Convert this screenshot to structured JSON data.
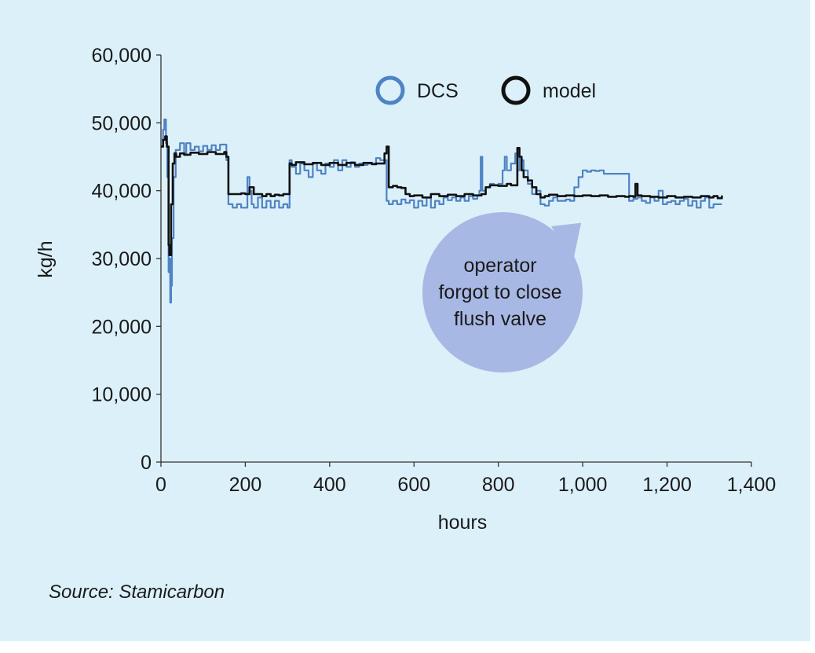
{
  "chart_data": {
    "type": "line",
    "title": "",
    "xlabel": "hours",
    "ylabel": "kg/h",
    "xlim": [
      0,
      1400
    ],
    "ylim": [
      0,
      60000
    ],
    "x_ticks": [
      0,
      200,
      400,
      600,
      800,
      1000,
      1200,
      1400
    ],
    "x_tick_labels": [
      "0",
      "200",
      "400",
      "600",
      "800",
      "1,000",
      "1,200",
      "1,400"
    ],
    "y_ticks": [
      0,
      10000,
      20000,
      30000,
      40000,
      50000,
      60000
    ],
    "y_tick_labels": [
      "0",
      "10,000",
      "20,000",
      "30,000",
      "40,000",
      "50,000",
      "60,000"
    ],
    "grid": false,
    "legend_position": "top-right",
    "series": [
      {
        "name": "DCS",
        "color": "#4f83c3",
        "x": [
          0,
          5,
          8,
          12,
          15,
          18,
          20,
          22,
          24,
          26,
          30,
          35,
          45,
          55,
          60,
          70,
          80,
          90,
          100,
          110,
          120,
          130,
          140,
          150,
          155,
          160,
          170,
          180,
          190,
          200,
          205,
          210,
          215,
          220,
          230,
          240,
          250,
          260,
          270,
          280,
          290,
          300,
          305,
          310,
          320,
          330,
          340,
          350,
          360,
          370,
          380,
          390,
          400,
          410,
          420,
          430,
          440,
          450,
          460,
          470,
          480,
          490,
          500,
          510,
          520,
          530,
          535,
          540,
          550,
          560,
          570,
          580,
          590,
          600,
          610,
          620,
          630,
          640,
          650,
          660,
          670,
          680,
          690,
          700,
          710,
          720,
          730,
          740,
          750,
          755,
          758,
          762,
          770,
          780,
          790,
          800,
          810,
          815,
          820,
          830,
          840,
          845,
          850,
          855,
          860,
          870,
          880,
          890,
          900,
          910,
          920,
          930,
          940,
          950,
          960,
          970,
          980,
          990,
          1000,
          1010,
          1020,
          1030,
          1040,
          1050,
          1060,
          1070,
          1080,
          1090,
          1100,
          1110,
          1120,
          1130,
          1140,
          1150,
          1160,
          1170,
          1180,
          1190,
          1200,
          1210,
          1220,
          1230,
          1240,
          1250,
          1260,
          1270,
          1280,
          1290,
          1300,
          1310,
          1320,
          1330
        ],
        "values": [
          47500,
          49000,
          50500,
          47000,
          42000,
          28000,
          30000,
          23500,
          26000,
          33000,
          42000,
          46000,
          47000,
          45500,
          47000,
          46000,
          46500,
          45800,
          46600,
          46000,
          46700,
          46000,
          46800,
          46800,
          44500,
          38000,
          37500,
          38000,
          37500,
          37500,
          42000,
          40000,
          38000,
          37500,
          39000,
          37500,
          38500,
          37500,
          38500,
          37500,
          38000,
          37500,
          44500,
          43500,
          42500,
          44000,
          43000,
          42000,
          44000,
          43000,
          42500,
          44000,
          43500,
          44500,
          43000,
          44500,
          43500,
          44200,
          43500,
          44000,
          43800,
          44000,
          44000,
          44800,
          44500,
          44500,
          38500,
          38000,
          38500,
          38000,
          38700,
          38200,
          38600,
          37500,
          38500,
          37800,
          39000,
          37500,
          38500,
          38000,
          39000,
          38600,
          39000,
          38500,
          39000,
          38500,
          39200,
          38800,
          39300,
          40000,
          45000,
          40000,
          40500,
          41000,
          40800,
          41000,
          43000,
          45000,
          43000,
          44000,
          45500,
          43000,
          45000,
          44500,
          43000,
          41000,
          39500,
          40000,
          38000,
          37800,
          38500,
          39000,
          38500,
          38500,
          38700,
          38500,
          40500,
          42000,
          43000,
          42800,
          43000,
          42900,
          43000,
          42500,
          42500,
          42500,
          42500,
          42500,
          42500,
          38500,
          38800,
          39000,
          38500,
          38200,
          39000,
          38500,
          40000,
          38000,
          38300,
          38500,
          38000,
          38500,
          38800,
          37800,
          38500,
          37500,
          38500,
          39000,
          37500,
          38000,
          38000,
          38000
        ]
      },
      {
        "name": "model",
        "color": "#111111",
        "x": [
          0,
          5,
          10,
          14,
          18,
          20,
          24,
          28,
          32,
          36,
          45,
          55,
          70,
          90,
          110,
          130,
          150,
          155,
          160,
          170,
          180,
          190,
          200,
          210,
          220,
          230,
          240,
          250,
          260,
          270,
          280,
          290,
          300,
          305,
          310,
          320,
          340,
          360,
          380,
          400,
          420,
          440,
          460,
          480,
          500,
          510,
          520,
          530,
          535,
          540,
          550,
          560,
          570,
          580,
          590,
          600,
          620,
          640,
          660,
          680,
          700,
          720,
          740,
          760,
          770,
          780,
          800,
          820,
          830,
          840,
          845,
          850,
          855,
          860,
          870,
          880,
          890,
          900,
          910,
          920,
          940,
          960,
          980,
          1000,
          1020,
          1040,
          1060,
          1080,
          1100,
          1110,
          1120,
          1125,
          1130,
          1140,
          1160,
          1180,
          1200,
          1220,
          1240,
          1260,
          1280,
          1300,
          1310,
          1320,
          1330
        ],
        "values": [
          46500,
          47500,
          48000,
          46500,
          32000,
          30500,
          38000,
          44000,
          45500,
          45000,
          45500,
          45300,
          45600,
          45400,
          45700,
          45400,
          45700,
          45000,
          39500,
          39500,
          39500,
          39600,
          39500,
          40500,
          39500,
          39500,
          39200,
          39500,
          39200,
          39400,
          39300,
          39500,
          39500,
          44000,
          43800,
          44200,
          43900,
          44100,
          43800,
          44100,
          43800,
          44100,
          43800,
          44100,
          43900,
          44000,
          44000,
          45500,
          46500,
          40500,
          40700,
          40500,
          40400,
          39500,
          39200,
          39300,
          39000,
          39500,
          39200,
          39400,
          39200,
          39500,
          39300,
          39500,
          40500,
          40800,
          40700,
          41000,
          40800,
          40800,
          46300,
          45000,
          43000,
          42000,
          41500,
          40500,
          39500,
          39000,
          39200,
          39400,
          39200,
          39300,
          39200,
          39300,
          39200,
          39300,
          39100,
          39200,
          39100,
          39200,
          39100,
          41000,
          39300,
          39200,
          39100,
          39000,
          39200,
          39000,
          39100,
          39000,
          39200,
          39000,
          39200,
          38900,
          39300
        ]
      }
    ],
    "annotations": [
      {
        "text_lines": [
          "operator",
          "forgot to close",
          "flush valve"
        ],
        "points_to_x": 1000,
        "points_to_y": 38500,
        "fill": "#a8b8e4"
      }
    ]
  },
  "source": "Source: Stamicarbon"
}
